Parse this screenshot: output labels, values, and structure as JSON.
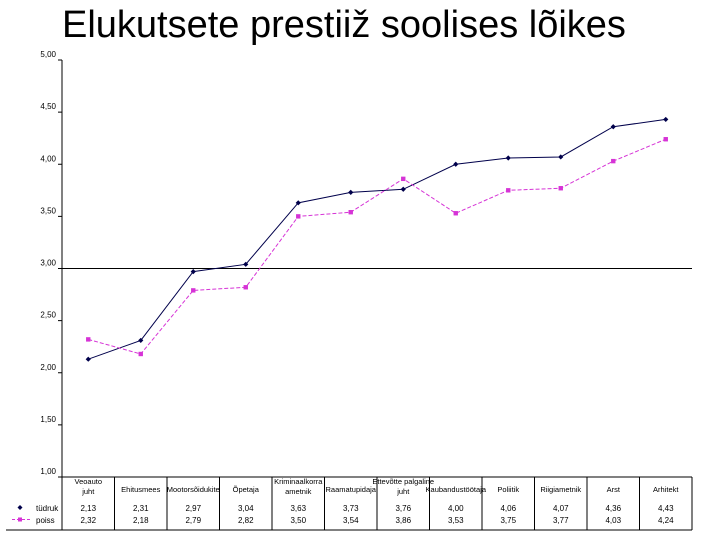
{
  "chart_data": {
    "type": "line",
    "title": "Elukutsete prestiiž soolises lõikes",
    "xlabel": "",
    "ylabel": "",
    "ylim": [
      1.0,
      5.0
    ],
    "yticks": [
      "1,00",
      "1,50",
      "2,00",
      "2,50",
      "3,00",
      "3,50",
      "4,00",
      "4,50",
      "5,00"
    ],
    "reference_line": 3.0,
    "grid": false,
    "legend": "data-table-below",
    "categories": [
      "Veoauto juht",
      "Ehitusmees",
      "Mootorsõidukite",
      "Õpetaja",
      "Kriminaalkorra ametnik",
      "Raamatupidaja",
      "Ettevõtte palgaline juht",
      "Kaubandustöötaja",
      "Poliitik",
      "Riigiametnik",
      "Arst",
      "Arhitekt"
    ],
    "series": [
      {
        "name": "tüdruk",
        "color": "#00004b",
        "marker": "diamond",
        "values": [
          2.13,
          2.31,
          2.97,
          3.04,
          3.63,
          3.73,
          3.76,
          4.0,
          4.06,
          4.07,
          4.36,
          4.43
        ],
        "labels": [
          "2,13",
          "2,31",
          "2,97",
          "3,04",
          "3,63",
          "3,73",
          "3,76",
          "4,00",
          "4,06",
          "4,07",
          "4,36",
          "4,43"
        ]
      },
      {
        "name": "poiss",
        "color": "#d633d6",
        "marker": "square",
        "values": [
          2.32,
          2.18,
          2.79,
          2.82,
          3.5,
          3.54,
          3.86,
          3.53,
          3.75,
          3.77,
          4.03,
          4.24
        ],
        "labels": [
          "2,32",
          "2,18",
          "2,79",
          "2,82",
          "3,50",
          "3,54",
          "3,86",
          "3,53",
          "3,75",
          "3,77",
          "4,03",
          "4,24"
        ]
      }
    ]
  }
}
